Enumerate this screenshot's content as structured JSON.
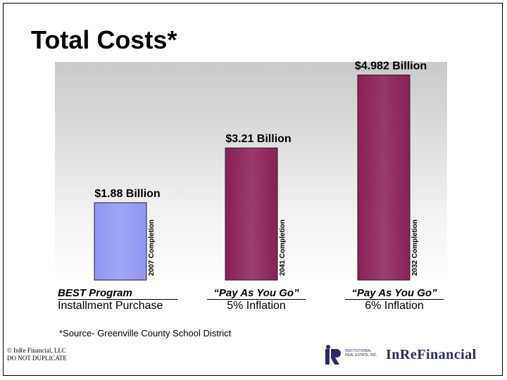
{
  "title": "Total Costs*",
  "chart_data": {
    "type": "bar",
    "categories": [
      {
        "top": "BEST Program",
        "bottom": "Installment Purchase"
      },
      {
        "top": "“Pay As You Go”",
        "bottom": "5% Inflation"
      },
      {
        "top": "“Pay As You Go”",
        "bottom": "6% Inflation"
      }
    ],
    "values": [
      1.88,
      3.21,
      4.982
    ],
    "value_labels": [
      "$1.88 Billion",
      "$3.21 Billion",
      "$4.982 Billion"
    ],
    "completion_labels": [
      "2007 Completion",
      "2041 Completion",
      "2032 Completion"
    ],
    "colors": [
      "#8f96f4",
      "#8a1f55",
      "#8a1f55"
    ],
    "ylim": [
      0,
      5.3
    ],
    "grid": false
  },
  "source": "*Source- Greenville County School District",
  "copyright": [
    "© InRe Financial, LLC",
    "DO NOT DUPLICATE"
  ],
  "logo": {
    "small_text": [
      "INSTITUTIONAL",
      "REAL ESTATE, INC."
    ],
    "big_text": "InReFinancial"
  }
}
